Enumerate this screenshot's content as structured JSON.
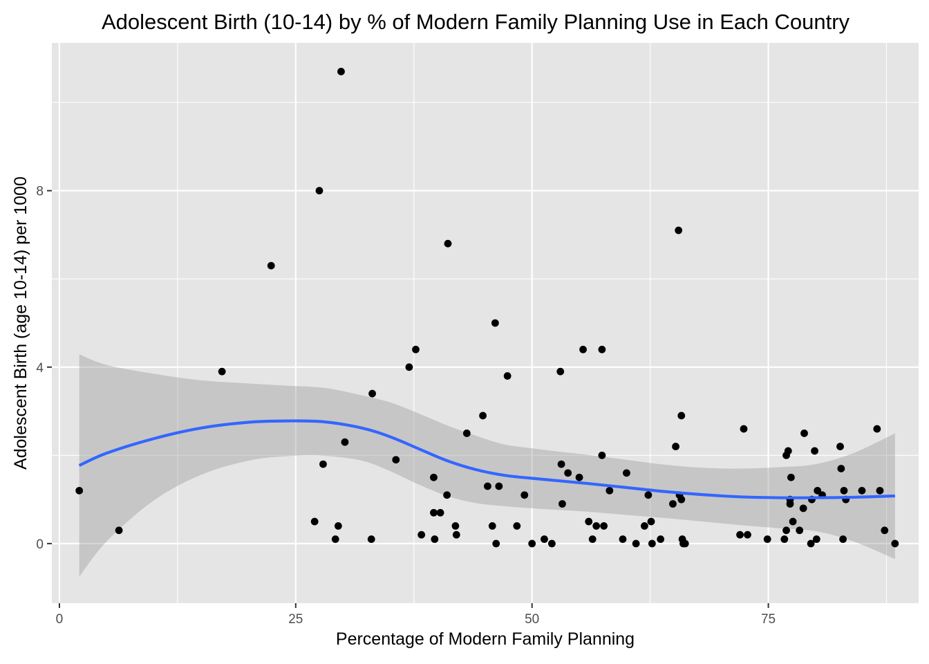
{
  "chart_data": {
    "type": "scatter",
    "title": "Adolescent Birth (10-14) by % of Modern Family Planning Use in Each Country",
    "xlabel": "Percentage of Modern Family Planning",
    "ylabel": "Adolescent Birth (age 10-14) per 1000",
    "xlim": [
      -0.8,
      90.9
    ],
    "ylim": [
      -1.35,
      11.35
    ],
    "x_ticks": [
      0,
      25,
      50,
      75
    ],
    "x_tick_labels": [
      "0",
      "25",
      "50",
      "75"
    ],
    "y_ticks": [
      0,
      4,
      8
    ],
    "y_tick_labels": [
      "0",
      "4",
      "8"
    ],
    "grid": true,
    "legend": "none",
    "colors": {
      "panel": "#e5e5e5",
      "grid": "#ffffff",
      "points": "#000000",
      "smooth_line": "#3366ff",
      "ribbon": "#999999"
    },
    "points": [
      {
        "x": 2.1,
        "y": 1.2
      },
      {
        "x": 6.3,
        "y": 0.3
      },
      {
        "x": 17.2,
        "y": 3.9
      },
      {
        "x": 22.4,
        "y": 6.3
      },
      {
        "x": 27.0,
        "y": 0.5
      },
      {
        "x": 27.5,
        "y": 8.0
      },
      {
        "x": 27.9,
        "y": 1.8
      },
      {
        "x": 29.2,
        "y": 0.1
      },
      {
        "x": 29.5,
        "y": 0.4
      },
      {
        "x": 29.8,
        "y": 10.7
      },
      {
        "x": 30.2,
        "y": 2.3
      },
      {
        "x": 33.0,
        "y": 0.1
      },
      {
        "x": 33.1,
        "y": 3.4
      },
      {
        "x": 35.6,
        "y": 1.9
      },
      {
        "x": 37.0,
        "y": 4.0
      },
      {
        "x": 37.7,
        "y": 4.4
      },
      {
        "x": 38.3,
        "y": 0.2
      },
      {
        "x": 39.6,
        "y": 0.7
      },
      {
        "x": 39.7,
        "y": 0.1
      },
      {
        "x": 39.6,
        "y": 1.5
      },
      {
        "x": 40.3,
        "y": 0.7
      },
      {
        "x": 41.0,
        "y": 1.1
      },
      {
        "x": 41.1,
        "y": 6.8
      },
      {
        "x": 41.9,
        "y": 0.4
      },
      {
        "x": 42.0,
        "y": 0.2
      },
      {
        "x": 43.1,
        "y": 2.5
      },
      {
        "x": 44.8,
        "y": 2.9
      },
      {
        "x": 45.3,
        "y": 1.3
      },
      {
        "x": 45.8,
        "y": 0.4
      },
      {
        "x": 46.1,
        "y": 5.0
      },
      {
        "x": 46.2,
        "y": 0.0
      },
      {
        "x": 46.5,
        "y": 1.3
      },
      {
        "x": 47.4,
        "y": 3.8
      },
      {
        "x": 48.4,
        "y": 0.4
      },
      {
        "x": 49.2,
        "y": 1.1
      },
      {
        "x": 50.0,
        "y": 0.0
      },
      {
        "x": 51.3,
        "y": 0.1
      },
      {
        "x": 52.1,
        "y": 0.0
      },
      {
        "x": 53.0,
        "y": 3.9
      },
      {
        "x": 53.1,
        "y": 1.8
      },
      {
        "x": 53.2,
        "y": 0.9
      },
      {
        "x": 53.8,
        "y": 1.6
      },
      {
        "x": 55.0,
        "y": 1.5
      },
      {
        "x": 55.4,
        "y": 4.4
      },
      {
        "x": 56.0,
        "y": 0.5
      },
      {
        "x": 56.4,
        "y": 0.1
      },
      {
        "x": 56.8,
        "y": 0.4
      },
      {
        "x": 57.4,
        "y": 4.4
      },
      {
        "x": 57.4,
        "y": 2.0
      },
      {
        "x": 57.6,
        "y": 0.4
      },
      {
        "x": 58.2,
        "y": 1.2
      },
      {
        "x": 59.6,
        "y": 0.1
      },
      {
        "x": 60.0,
        "y": 1.6
      },
      {
        "x": 61.0,
        "y": 0.0
      },
      {
        "x": 61.9,
        "y": 0.4
      },
      {
        "x": 62.3,
        "y": 1.1
      },
      {
        "x": 62.6,
        "y": 0.5
      },
      {
        "x": 62.7,
        "y": 0.0
      },
      {
        "x": 63.6,
        "y": 0.1
      },
      {
        "x": 64.9,
        "y": 0.9
      },
      {
        "x": 65.2,
        "y": 2.2
      },
      {
        "x": 65.5,
        "y": 7.1
      },
      {
        "x": 65.6,
        "y": 1.1
      },
      {
        "x": 65.8,
        "y": 2.9
      },
      {
        "x": 65.8,
        "y": 1.0
      },
      {
        "x": 65.9,
        "y": 0.1
      },
      {
        "x": 66.0,
        "y": 0.0
      },
      {
        "x": 66.2,
        "y": 0.0
      },
      {
        "x": 72.0,
        "y": 0.2
      },
      {
        "x": 72.4,
        "y": 2.6
      },
      {
        "x": 72.8,
        "y": 0.2
      },
      {
        "x": 74.9,
        "y": 0.1
      },
      {
        "x": 76.7,
        "y": 0.1
      },
      {
        "x": 76.9,
        "y": 0.3
      },
      {
        "x": 76.9,
        "y": 2.0
      },
      {
        "x": 77.1,
        "y": 2.1
      },
      {
        "x": 77.3,
        "y": 1.0
      },
      {
        "x": 77.3,
        "y": 0.9
      },
      {
        "x": 77.4,
        "y": 1.5
      },
      {
        "x": 77.6,
        "y": 0.5
      },
      {
        "x": 78.3,
        "y": 0.3
      },
      {
        "x": 78.8,
        "y": 2.5
      },
      {
        "x": 78.7,
        "y": 0.8
      },
      {
        "x": 79.5,
        "y": 0.0
      },
      {
        "x": 79.6,
        "y": 1.0
      },
      {
        "x": 79.9,
        "y": 2.1
      },
      {
        "x": 80.1,
        "y": 0.1
      },
      {
        "x": 80.2,
        "y": 1.2
      },
      {
        "x": 80.7,
        "y": 1.1
      },
      {
        "x": 82.6,
        "y": 2.2
      },
      {
        "x": 82.7,
        "y": 1.7
      },
      {
        "x": 82.9,
        "y": 0.1
      },
      {
        "x": 83.0,
        "y": 1.2
      },
      {
        "x": 83.2,
        "y": 1.0
      },
      {
        "x": 84.9,
        "y": 1.2
      },
      {
        "x": 86.5,
        "y": 2.6
      },
      {
        "x": 86.8,
        "y": 1.2
      },
      {
        "x": 87.3,
        "y": 0.3
      },
      {
        "x": 88.4,
        "y": 0.0
      }
    ],
    "smooth": {
      "method": "loess",
      "x": [
        2.1,
        5,
        10,
        15,
        20,
        24,
        28,
        32,
        35,
        38,
        41,
        44,
        47,
        50,
        53,
        56,
        60,
        64,
        68,
        72,
        76,
        80,
        84,
        88.4
      ],
      "y": [
        1.77,
        2.05,
        2.38,
        2.62,
        2.75,
        2.78,
        2.76,
        2.62,
        2.42,
        2.15,
        1.88,
        1.68,
        1.55,
        1.48,
        1.42,
        1.36,
        1.27,
        1.18,
        1.11,
        1.06,
        1.04,
        1.04,
        1.05,
        1.08
      ],
      "ymin": [
        -0.75,
        0.05,
        0.98,
        1.56,
        1.88,
        1.98,
        1.99,
        1.88,
        1.64,
        1.34,
        1.08,
        0.92,
        0.85,
        0.8,
        0.76,
        0.72,
        0.65,
        0.58,
        0.5,
        0.42,
        0.35,
        0.28,
        0.05,
        -0.35
      ],
      "ymax": [
        4.29,
        4.05,
        3.85,
        3.7,
        3.63,
        3.58,
        3.53,
        3.36,
        3.2,
        2.95,
        2.68,
        2.45,
        2.25,
        2.16,
        2.08,
        2.01,
        1.9,
        1.79,
        1.72,
        1.7,
        1.73,
        1.8,
        2.05,
        2.5
      ]
    }
  }
}
